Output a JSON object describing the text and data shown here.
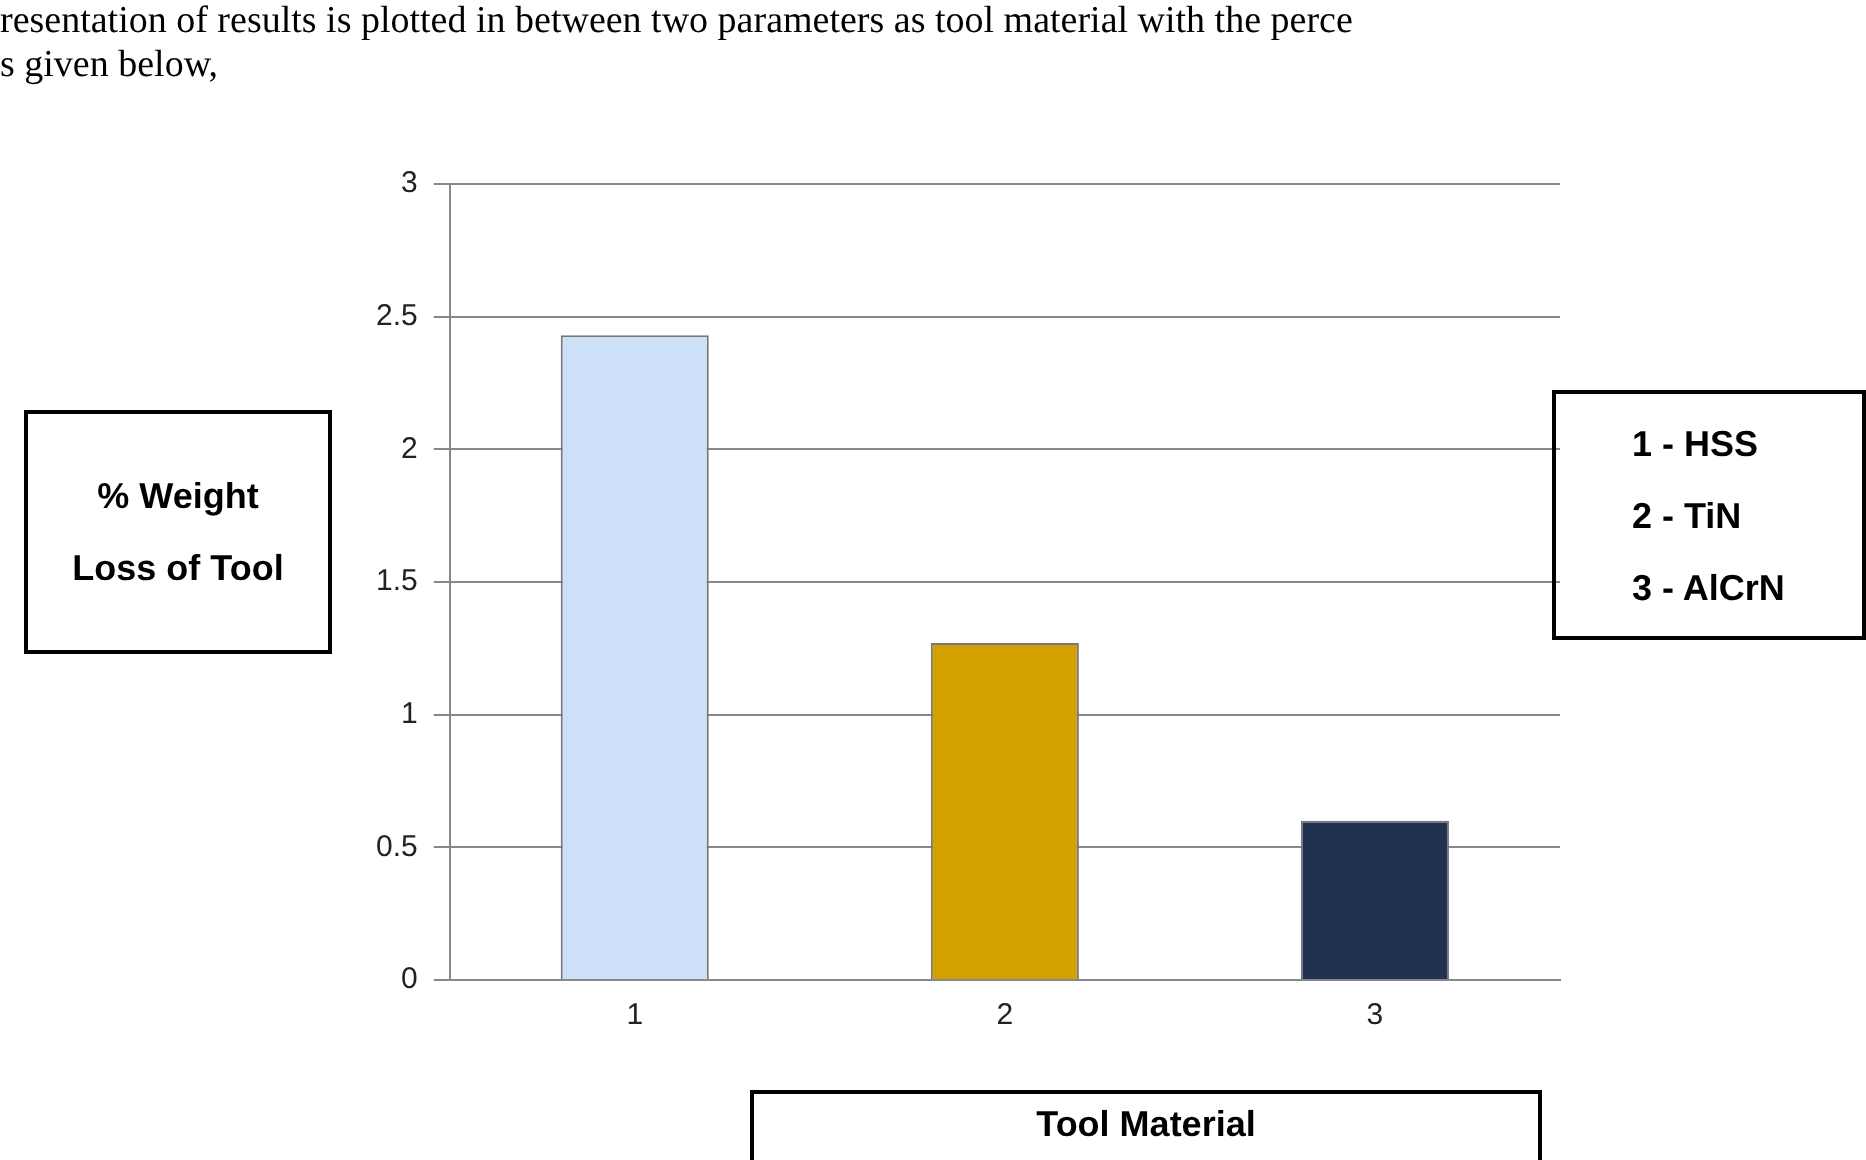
{
  "chart_data": {
    "type": "bar",
    "xlabel": "Tool Material",
    "ylabel": "% Weight Loss of Tool",
    "categories": [
      "1",
      "2",
      "3"
    ],
    "values": [
      2.43,
      1.27,
      0.6
    ],
    "colors": [
      "#cce0f8",
      "#d4a000",
      "#1f3350"
    ],
    "ylim": [
      0,
      3
    ],
    "yticks": [
      0,
      0.5,
      1,
      1.5,
      2,
      2.5,
      3
    ],
    "grid": "y",
    "legend": false,
    "annotations": [
      "resentation of results is plotted in between two parameters as tool material with the perce",
      "s given below,",
      "1 - HSS",
      "2 - TiN",
      "3 - AlCrN"
    ]
  }
}
